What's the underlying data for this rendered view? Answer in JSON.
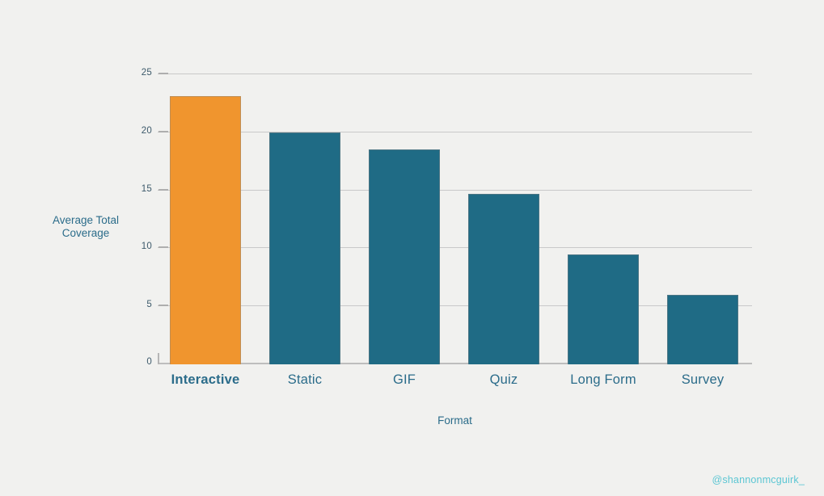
{
  "canvas": {
    "background": "#f1f1ef"
  },
  "chart_data": {
    "type": "bar",
    "title": "",
    "categories": [
      "Interactive",
      "Static",
      "GIF",
      "Quiz",
      "Long Form",
      "Survey"
    ],
    "values": [
      23.1,
      20,
      18.5,
      14.7,
      9.5,
      6
    ],
    "xlabel": "Format",
    "ylabel": "Average Total Coverage",
    "ylim": [
      0,
      25
    ],
    "yticks": [
      0,
      5,
      10,
      15,
      20,
      25
    ],
    "grid": true,
    "legend": false,
    "highlight_category": "Interactive",
    "colors": {
      "bar": "#1F6B85",
      "highlight": "#F0952E",
      "axis_text": "#2B6C8A",
      "tick_text": "#3D5A6B",
      "gridline": "#C9C9C9"
    }
  },
  "attribution": {
    "label": "@shannonmcguirk_",
    "color": "#5BC6D3"
  }
}
